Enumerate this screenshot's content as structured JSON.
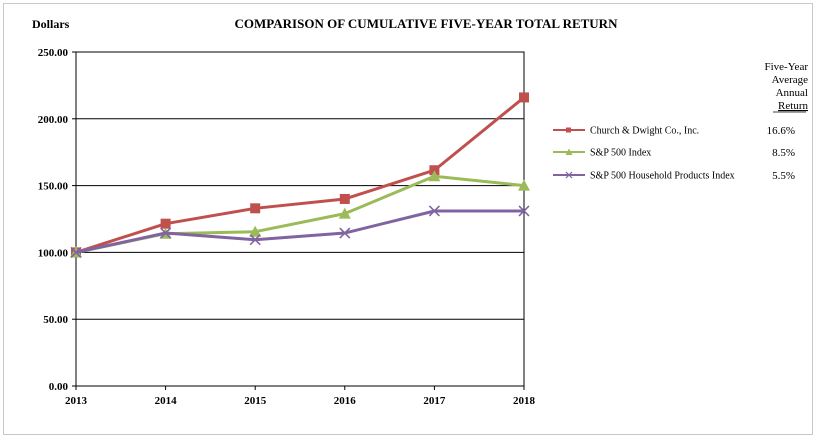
{
  "chart_data": {
    "type": "line",
    "title": "COMPARISON OF CUMULATIVE  FIVE-YEAR  TOTAL RETURN",
    "ylabel": "Dollars",
    "xlabel": "",
    "x": [
      "2013",
      "2014",
      "2015",
      "2016",
      "2017",
      "2018"
    ],
    "ylim": [
      0,
      250
    ],
    "yticks": [
      "0.00",
      "50.00",
      "100.00",
      "150.00",
      "200.00",
      "250.00"
    ],
    "grid": true,
    "legend_position": "right",
    "side_header": [
      "Five-Year",
      "Average",
      "Annual",
      "Return"
    ],
    "series": [
      {
        "name": "Church & Dwight Co., Inc.",
        "color": "#c0504d",
        "marker": "square",
        "values": [
          100,
          121.5,
          133,
          140,
          161.5,
          216
        ],
        "annual_return": "16.6%"
      },
      {
        "name": "S&P 500 Index",
        "color": "#9bbb59",
        "marker": "triangle",
        "values": [
          100,
          114,
          115.5,
          129,
          157,
          150
        ],
        "annual_return": "8.5%"
      },
      {
        "name": "S&P 500 Household Products Index",
        "color": "#8064a2",
        "marker": "x",
        "values": [
          100,
          114.5,
          109.5,
          114.5,
          131,
          131
        ],
        "annual_return": "5.5%"
      }
    ]
  }
}
